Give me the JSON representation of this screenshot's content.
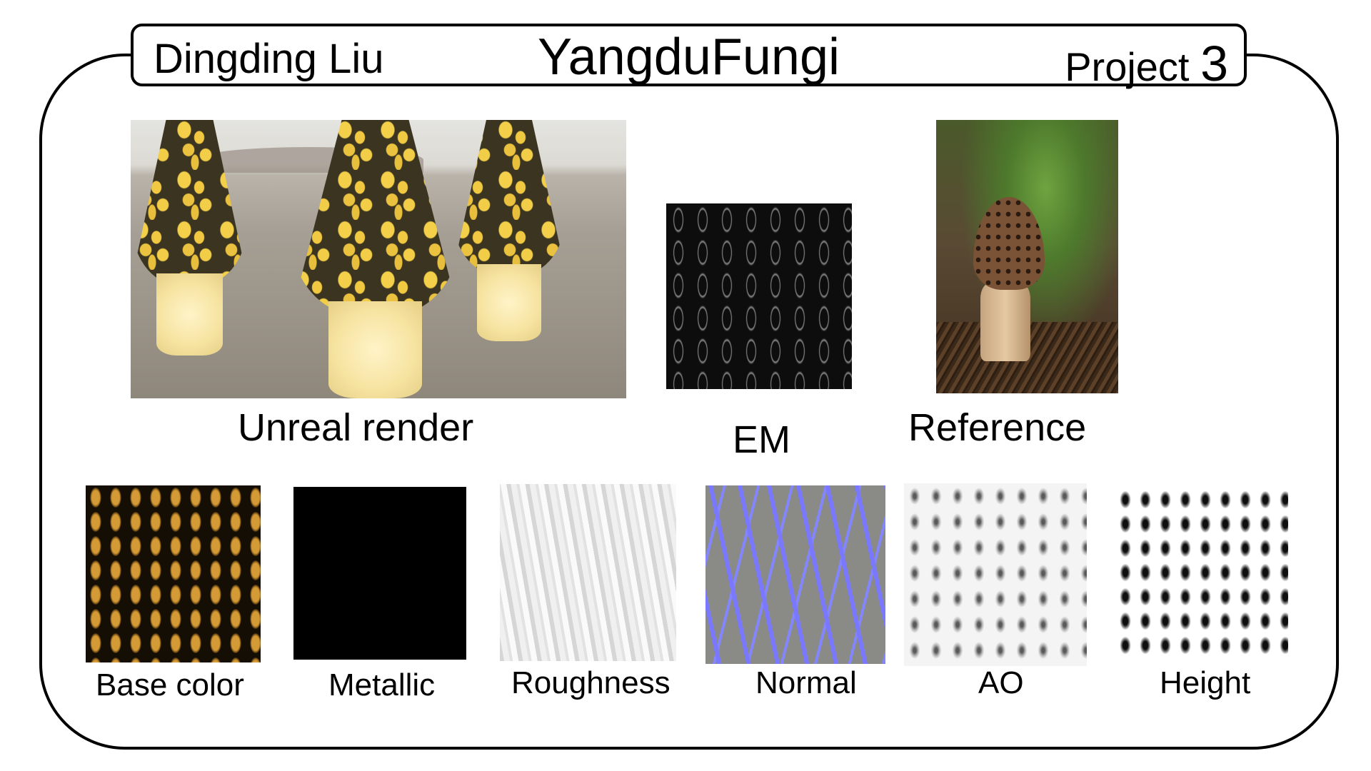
{
  "header": {
    "author": "Dingding Liu",
    "title": "YangduFungi",
    "project_label": "Project",
    "project_number": "3"
  },
  "images": {
    "render_label": "Unreal render",
    "em_label": "EM",
    "reference_label": "Reference"
  },
  "maps": [
    {
      "label": "Base color"
    },
    {
      "label": "Metallic"
    },
    {
      "label": "Roughness"
    },
    {
      "label": "Normal"
    },
    {
      "label": "AO"
    },
    {
      "label": "Height"
    }
  ]
}
